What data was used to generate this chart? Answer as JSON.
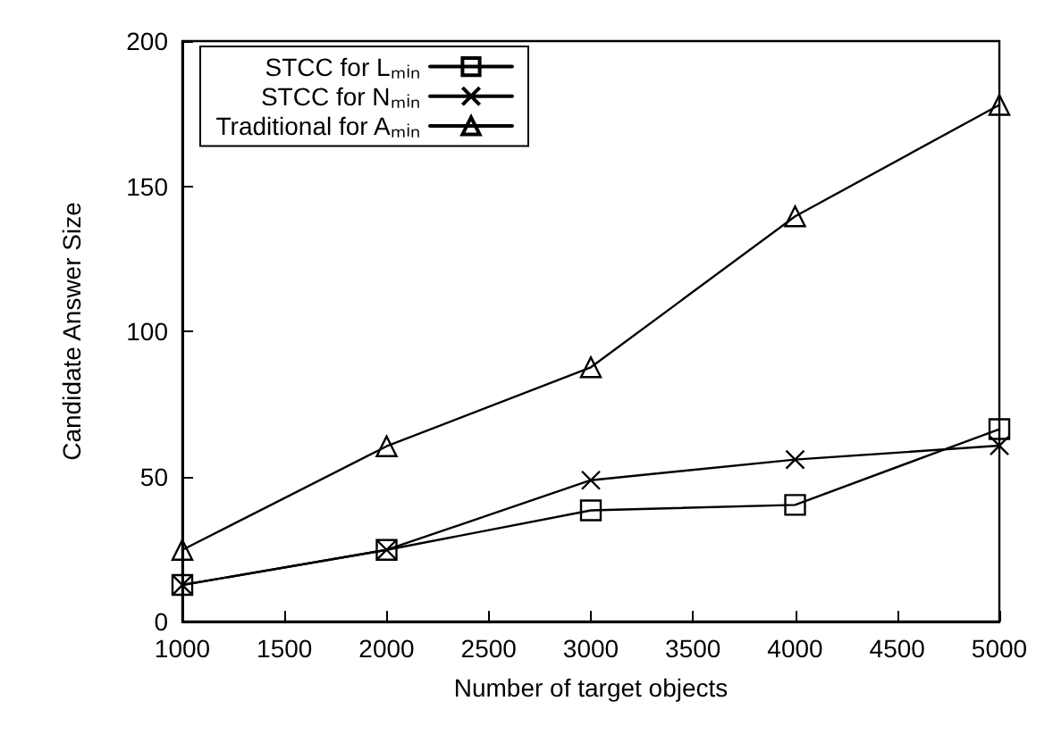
{
  "chart_data": {
    "type": "line",
    "xlabel": "Number of target objects",
    "ylabel": "Candidate Answer Size",
    "x": [
      1000,
      2000,
      3000,
      4000,
      5000
    ],
    "series": [
      {
        "name": "STCC for Lₘᵢₙ",
        "color": "#000000",
        "marker": "square",
        "values": [
          12.6,
          24.7,
          38.3,
          40.2,
          66.3
        ]
      },
      {
        "name": "STCC for Nₘᵢₙ",
        "color": "#000000",
        "marker": "cross",
        "values": [
          12.6,
          24.7,
          48.7,
          55.8,
          60.6
        ]
      },
      {
        "name": "Traditional for Aₘᵢₙ",
        "color": "#000000",
        "marker": "triangle",
        "values": [
          24.7,
          60.4,
          87.6,
          139.6,
          178
        ]
      }
    ],
    "xlim": [
      1000,
      5000
    ],
    "xticks": [
      1000,
      1500,
      2000,
      2500,
      3000,
      3500,
      4000,
      4500,
      5000
    ],
    "ylim": [
      0,
      200
    ],
    "yticks": [
      0,
      50,
      100,
      150,
      200
    ],
    "grid": false,
    "legend": "top left",
    "line_style": "solid"
  }
}
